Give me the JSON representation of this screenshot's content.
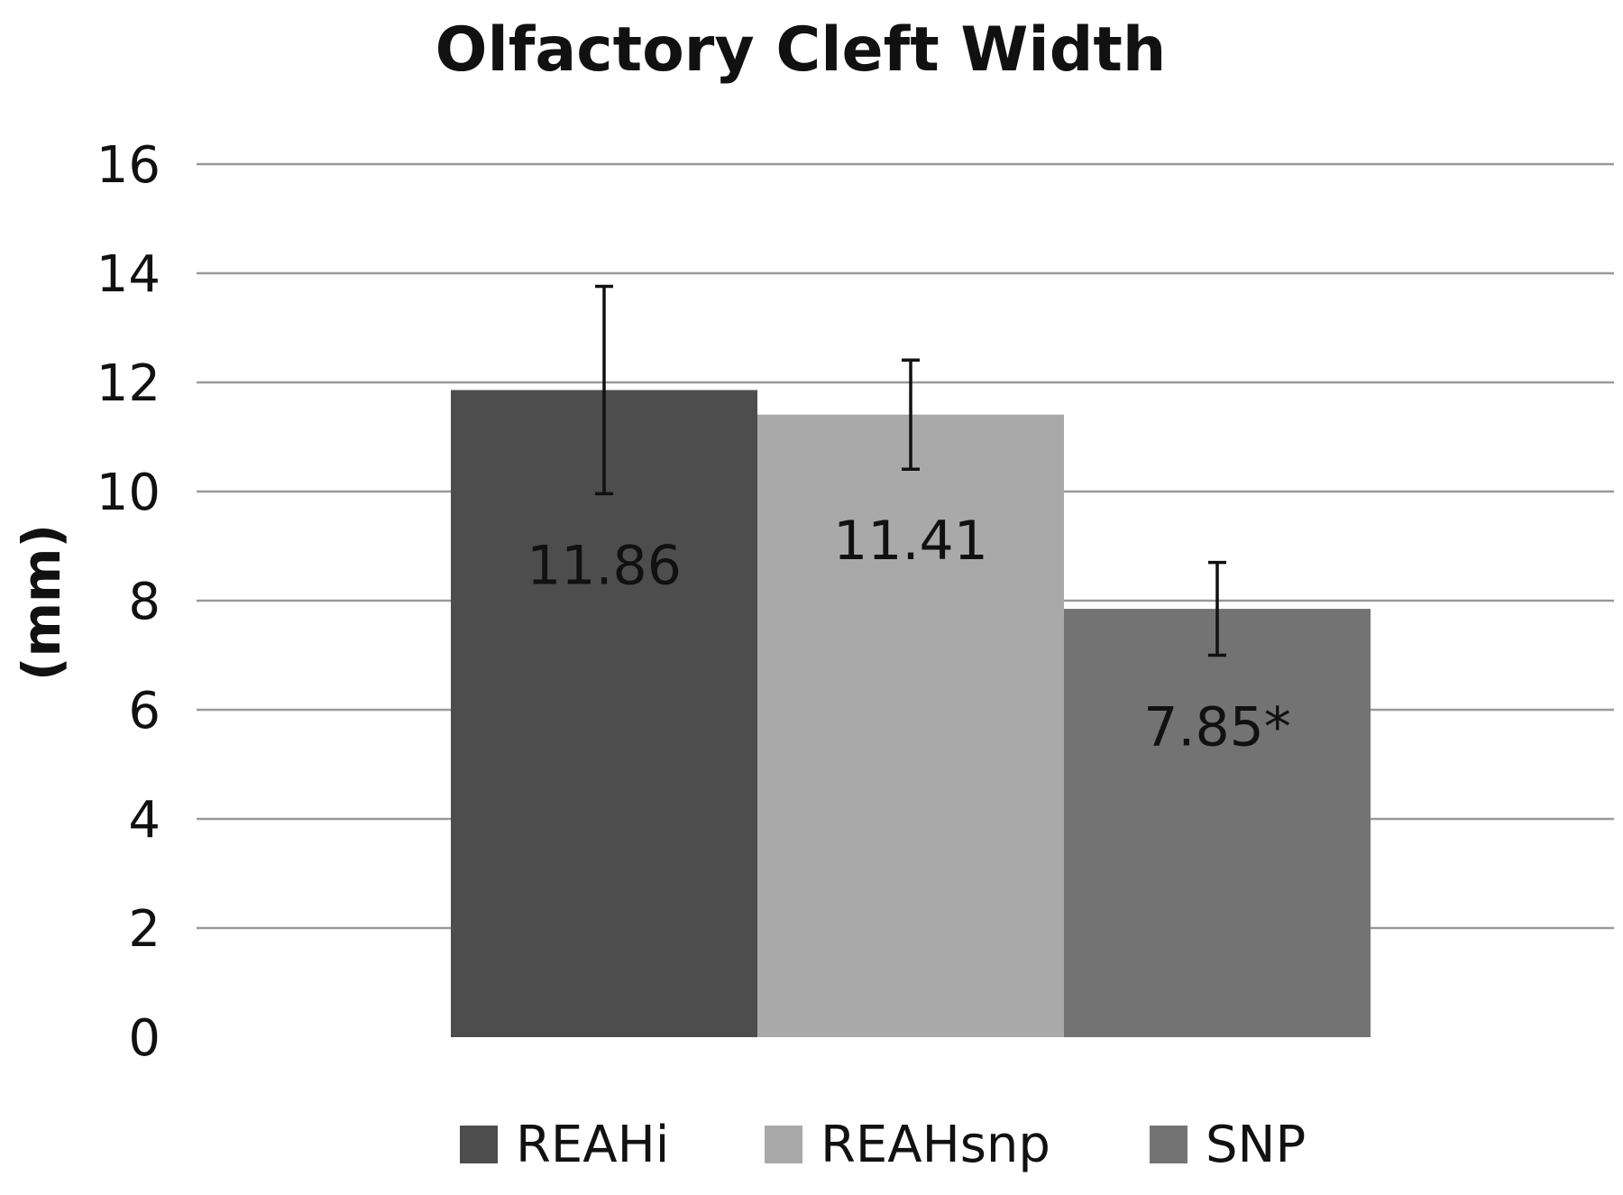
{
  "chart_data": {
    "type": "bar",
    "title": "Olfactory Cleft Width",
    "ylabel": "(mm)",
    "xlabel": "",
    "ylim": [
      0,
      16
    ],
    "yticks": [
      0,
      2,
      4,
      6,
      8,
      10,
      12,
      14,
      16
    ],
    "grid": true,
    "legend_position": "bottom",
    "categories": [
      ""
    ],
    "series": [
      {
        "name": "REAHi",
        "values": [
          11.86
        ],
        "error": [
          1.9
        ],
        "label": "11.86",
        "color": "#4d4d4d"
      },
      {
        "name": "REAHsnp",
        "values": [
          11.41
        ],
        "error": [
          1.0
        ],
        "label": "11.41",
        "color": "#a9a9a9"
      },
      {
        "name": "SNP",
        "values": [
          7.85
        ],
        "error": [
          0.85
        ],
        "label": "7.85*",
        "color": "#737373"
      }
    ]
  }
}
